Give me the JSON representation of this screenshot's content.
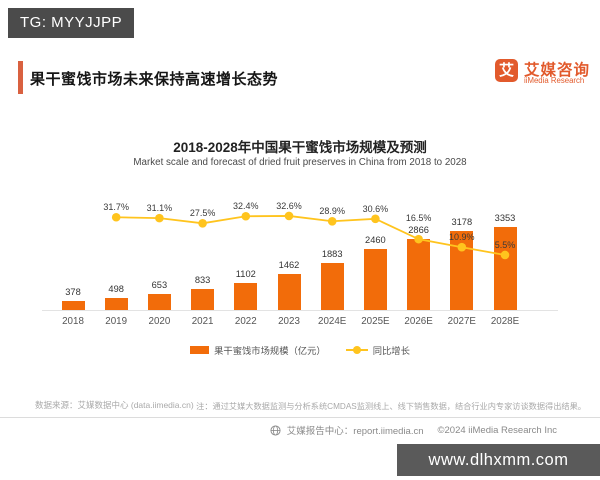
{
  "tag_banner": "TG: MYYJJPP",
  "page_title": "果干蜜饯市场未来保持高速增长态势",
  "logo": {
    "glyph": "艾",
    "name_cn": "艾媒咨询",
    "name_en": "iiMedia Research"
  },
  "chart_data": {
    "type": "bar",
    "title": "2018-2028年中国果干蜜饯市场规模及预测",
    "subtitle": "Market scale and forecast of dried fruit preserves in China from 2018 to 2028",
    "categories": [
      "2018",
      "2019",
      "2020",
      "2021",
      "2022",
      "2023",
      "2024E",
      "2025E",
      "2026E",
      "2027E",
      "2028E"
    ],
    "series": [
      {
        "name": "果干蜜饯市场规模（亿元）",
        "type": "bar",
        "color": "#f26c0a",
        "values": [
          378,
          498,
          653,
          833,
          1102,
          1462,
          1883,
          2460,
          2866,
          3178,
          3353
        ]
      },
      {
        "name": "同比增长",
        "type": "line",
        "color": "#ffc41e",
        "unit": "%",
        "values": [
          null,
          31.7,
          31.1,
          27.5,
          32.4,
          32.6,
          28.9,
          30.6,
          16.5,
          10.9,
          5.5
        ]
      }
    ],
    "value_labels": true,
    "grid": false,
    "y_axis_visible": false,
    "legend_position": "bottom"
  },
  "source_note": "数据来源：艾媒数据中心 (data.iimedia.cn)",
  "method_note": "注：通过艾媒大数据监测与分析系统CMDAS监测线上、线下销售数据，结合行业内专家访谈数据得出结果。",
  "footer": {
    "report_center": "艾媒报告中心：report.iimedia.cn",
    "copyright": "©2024 iiMedia Research Inc"
  },
  "watermark": "www.dlhxmm.com",
  "colors": {
    "bar": "#f26c0a",
    "line": "#ffc41e",
    "accent": "#d96140",
    "banner_bg": "#4b4b4b",
    "watermark_bg": "#5a5a5a",
    "logo_orange": "#e25a2c"
  }
}
